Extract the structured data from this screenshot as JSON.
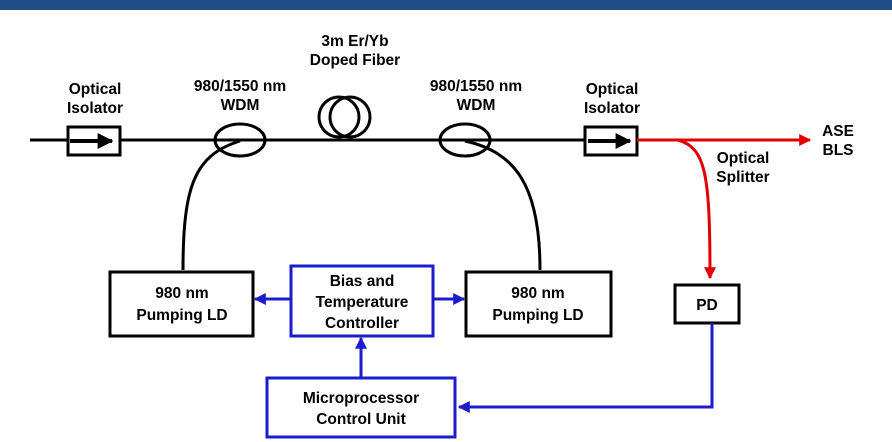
{
  "colors": {
    "header_bar": "#1f4f86",
    "fiber": "#000000",
    "red_path": "#e00000",
    "blue_path": "#1c1ccc",
    "blue_box": "#1c1ccc"
  },
  "labels": {
    "doped_fiber_line1": "3m Er/Yb",
    "doped_fiber_line2": "Doped Fiber",
    "left_isolator_line1": "Optical",
    "left_isolator_line2": "Isolator",
    "left_wdm_line1": "980/1550 nm",
    "left_wdm_line2": "WDM",
    "right_wdm_line1": "980/1550 nm",
    "right_wdm_line2": "WDM",
    "right_isolator_line1": "Optical",
    "right_isolator_line2": "Isolator",
    "output_line1": "ASE",
    "output_line2": "BLS",
    "splitter_line1": "Optical",
    "splitter_line2": "Splitter"
  },
  "boxes": {
    "left_pump_line1": "980 nm",
    "left_pump_line2": "Pumping LD",
    "right_pump_line1": "980 nm",
    "right_pump_line2": "Pumping LD",
    "bias_line1": "Bias and",
    "bias_line2": "Temperature",
    "bias_line3": "Controller",
    "pd": "PD",
    "mcu_line1": "Microprocessor",
    "mcu_line2": "Control Unit"
  }
}
